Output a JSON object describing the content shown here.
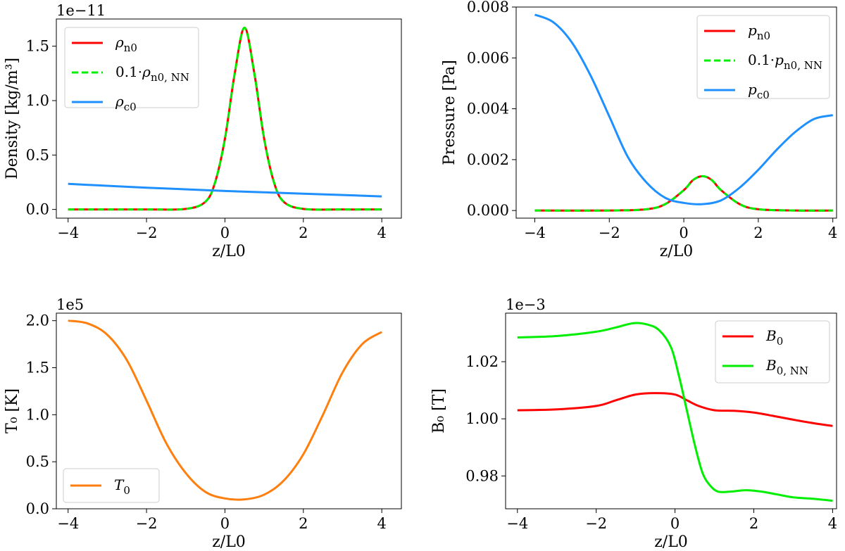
{
  "chart_data": [
    {
      "type": "line",
      "id": "density",
      "xlabel": "z/L0",
      "ylabel": "Density [kg/m³]",
      "y_offset": "1e−11",
      "xlim": [
        -4.3,
        4.5
      ],
      "ylim": [
        -0.08,
        1.75
      ],
      "xticks": [
        -4,
        -2,
        0,
        2,
        4
      ],
      "xtick_labels": [
        "−4",
        "−2",
        "0",
        "2",
        "4"
      ],
      "yticks": [
        0.0,
        0.5,
        1.0,
        1.5
      ],
      "ytick_labels": [
        "0.0",
        "0.5",
        "1.0",
        "1.5"
      ],
      "legend_position": "upper-left",
      "series": [
        {
          "name": "ρ_n0",
          "legend": {
            "main": "ρ",
            "sub": "n0"
          },
          "color": "#ff0000",
          "style": "solid",
          "x": [
            -4,
            -2,
            -1,
            -0.5,
            -0.25,
            0,
            0.25,
            0.5,
            0.75,
            1,
            1.25,
            1.5,
            2,
            3,
            4
          ],
          "y": [
            0,
            0,
            0.005,
            0.07,
            0.25,
            0.65,
            1.25,
            1.67,
            1.25,
            0.65,
            0.25,
            0.07,
            0.005,
            0,
            0
          ]
        },
        {
          "name": "0.1·ρ_n0,NN",
          "legend": {
            "main": "0.1·ρ",
            "sub": "n0, NN"
          },
          "color": "#00ee00",
          "style": "dashed",
          "x": [
            -4,
            -2,
            -1,
            -0.5,
            -0.25,
            0,
            0.25,
            0.5,
            0.75,
            1,
            1.25,
            1.5,
            2,
            3,
            4
          ],
          "y": [
            0,
            0,
            0.005,
            0.07,
            0.25,
            0.65,
            1.25,
            1.67,
            1.25,
            0.65,
            0.25,
            0.07,
            0.005,
            0,
            0
          ]
        },
        {
          "name": "ρ_c0",
          "legend": {
            "main": "ρ",
            "sub": "c0"
          },
          "color": "#1e90ff",
          "style": "solid",
          "x": [
            -4,
            -2,
            0,
            2,
            4
          ],
          "y": [
            0.235,
            0.2,
            0.17,
            0.145,
            0.12
          ]
        }
      ]
    },
    {
      "type": "line",
      "id": "pressure",
      "xlabel": "z/L0",
      "ylabel": "Pressure [Pa]",
      "y_offset": "",
      "xlim": [
        -4.5,
        4.1
      ],
      "ylim": [
        -0.0003,
        0.008
      ],
      "xticks": [
        -4,
        -2,
        0,
        2,
        4
      ],
      "xtick_labels": [
        "−4",
        "−2",
        "0",
        "2",
        "4"
      ],
      "yticks": [
        0.0,
        0.002,
        0.004,
        0.006,
        0.008
      ],
      "ytick_labels": [
        "0.000",
        "0.002",
        "0.004",
        "0.006",
        "0.008"
      ],
      "legend_position": "upper-right",
      "series": [
        {
          "name": "p_n0",
          "legend": {
            "main": "p",
            "sub": "n0"
          },
          "color": "#ff0000",
          "style": "solid",
          "x": [
            -4,
            -2,
            -1,
            -0.5,
            0,
            0.25,
            0.5,
            0.75,
            1,
            1.5,
            2,
            3,
            4
          ],
          "y": [
            0,
            0,
            5e-05,
            0.00025,
            0.0008,
            0.0012,
            0.00135,
            0.0012,
            0.0008,
            0.00025,
            5e-05,
            0,
            0
          ]
        },
        {
          "name": "0.1·p_n0,NN",
          "legend": {
            "main": "0.1·p",
            "sub": "n0, NN"
          },
          "color": "#00ee00",
          "style": "dashed",
          "x": [
            -4,
            -2,
            -1,
            -0.5,
            0,
            0.25,
            0.5,
            0.75,
            1,
            1.5,
            2,
            3,
            4
          ],
          "y": [
            0,
            0,
            5e-05,
            0.00025,
            0.0008,
            0.0012,
            0.00135,
            0.0012,
            0.0008,
            0.00025,
            5e-05,
            0,
            0
          ]
        },
        {
          "name": "p_c0",
          "legend": {
            "main": "p",
            "sub": "c0"
          },
          "color": "#1e90ff",
          "style": "solid",
          "x": [
            -4,
            -3.5,
            -3,
            -2.5,
            -2,
            -1.5,
            -1,
            -0.5,
            0,
            0.5,
            1,
            1.5,
            2,
            2.5,
            3,
            3.5,
            4
          ],
          "y": [
            0.0077,
            0.0074,
            0.0066,
            0.0053,
            0.0037,
            0.0021,
            0.0011,
            0.0005,
            0.0003,
            0.00025,
            0.0004,
            0.0009,
            0.0016,
            0.0024,
            0.0031,
            0.0036,
            0.00375
          ]
        }
      ]
    },
    {
      "type": "line",
      "id": "temperature",
      "xlabel": "z/L0",
      "ylabel": "T₀ [K]",
      "y_offset": "1e5",
      "xlim": [
        -4.3,
        4.5
      ],
      "ylim": [
        0,
        2.08
      ],
      "xticks": [
        -4,
        -2,
        0,
        2,
        4
      ],
      "xtick_labels": [
        "−4",
        "−2",
        "0",
        "2",
        "4"
      ],
      "yticks": [
        0.0,
        0.5,
        1.0,
        1.5,
        2.0
      ],
      "ytick_labels": [
        "0.0",
        "0.5",
        "1.0",
        "1.5",
        "2.0"
      ],
      "legend_position": "lower-left",
      "series": [
        {
          "name": "T_0",
          "legend": {
            "main": "T",
            "sub": "0"
          },
          "color": "#ff7f0e",
          "style": "solid",
          "x": [
            -4,
            -3.5,
            -3,
            -2.5,
            -2,
            -1.5,
            -1,
            -0.5,
            0,
            0.5,
            1,
            1.5,
            2,
            2.5,
            3,
            3.5,
            4
          ],
          "y": [
            2.0,
            1.97,
            1.85,
            1.58,
            1.15,
            0.7,
            0.38,
            0.18,
            0.11,
            0.1,
            0.15,
            0.3,
            0.58,
            1.0,
            1.45,
            1.75,
            1.88
          ]
        }
      ]
    },
    {
      "type": "line",
      "id": "magnetic-field",
      "xlabel": "z/L0",
      "ylabel": "B₀ [T]",
      "y_offset": "1e−3",
      "xlim": [
        -4.3,
        4.1
      ],
      "ylim": [
        0.9685,
        1.037
      ],
      "xticks": [
        -4,
        -2,
        0,
        2,
        4
      ],
      "xtick_labels": [
        "−4",
        "−2",
        "0",
        "2",
        "4"
      ],
      "yticks": [
        0.98,
        1.0,
        1.02
      ],
      "ytick_labels": [
        "0.98",
        "1.00",
        "1.02"
      ],
      "legend_position": "upper-right",
      "series": [
        {
          "name": "B_0",
          "legend": {
            "main": "B",
            "sub": "0"
          },
          "color": "#ff0000",
          "style": "solid",
          "x": [
            -4,
            -3,
            -2,
            -1.5,
            -1,
            -0.5,
            0,
            0.3,
            0.6,
            1,
            1.5,
            2,
            2.5,
            3,
            3.5,
            4
          ],
          "y": [
            1.003,
            1.0033,
            1.0045,
            1.0065,
            1.0085,
            1.009,
            1.0085,
            1.0065,
            1.0045,
            1.003,
            1.0028,
            1.0022,
            1.001,
            0.9997,
            0.9985,
            0.9975
          ]
        },
        {
          "name": "B_0,NN",
          "legend": {
            "main": "B",
            "sub": "0, NN"
          },
          "color": "#00ee00",
          "style": "solid",
          "x": [
            -4,
            -3,
            -2,
            -1.5,
            -1.05,
            -0.7,
            -0.4,
            -0.1,
            0.1,
            0.3,
            0.5,
            0.7,
            0.9,
            1.1,
            1.4,
            1.8,
            2.2,
            2.6,
            3,
            3.5,
            4
          ],
          "y": [
            1.0285,
            1.029,
            1.0305,
            1.032,
            1.0335,
            1.033,
            1.031,
            1.025,
            1.015,
            1.003,
            0.991,
            0.981,
            0.9765,
            0.9745,
            0.9745,
            0.975,
            0.9745,
            0.9735,
            0.9725,
            0.972,
            0.9713
          ]
        }
      ]
    }
  ]
}
